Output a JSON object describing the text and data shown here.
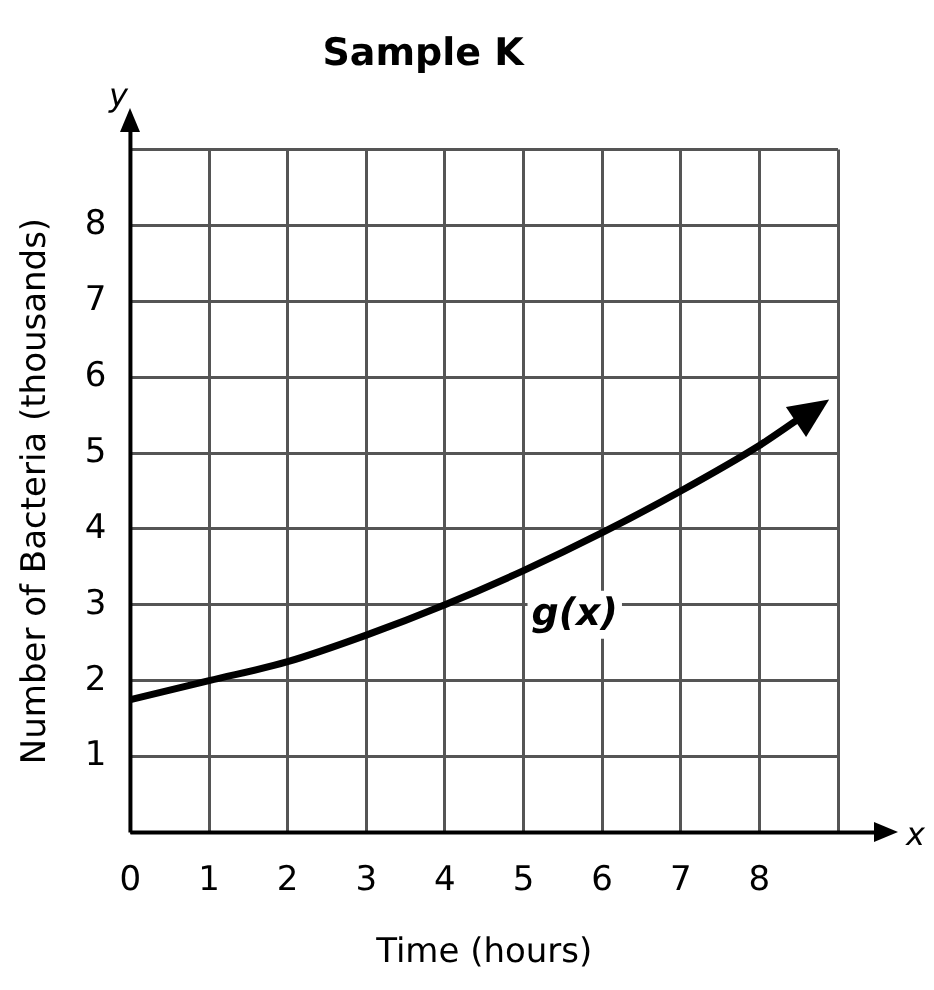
{
  "chart_data": {
    "type": "line",
    "title": "Sample K",
    "xlabel": "Time (hours)",
    "ylabel": "Number of Bacteria (thousands)",
    "x": [
      0,
      1,
      2,
      3,
      4,
      5,
      6,
      7,
      8,
      8.5
    ],
    "series": [
      {
        "name": "g(x)",
        "color": "#000000",
        "values": [
          1.75,
          2.0,
          2.25,
          2.6,
          3.0,
          3.45,
          3.95,
          4.5,
          5.1,
          5.45
        ]
      }
    ],
    "xlim": [
      0,
      9
    ],
    "ylim": [
      0,
      9
    ],
    "xticks": [
      0,
      1,
      2,
      3,
      4,
      5,
      6,
      7,
      8,
      {
        "value": 9,
        "label": null
      }
    ],
    "yticks": [
      {
        "value": 0,
        "label": null
      },
      1,
      2,
      3,
      4,
      5,
      6,
      7,
      8,
      {
        "value": 9,
        "label": null
      }
    ],
    "annotations": [
      "x",
      "y"
    ],
    "grid": true,
    "legend": false,
    "marker": "none",
    "line_style": "solid"
  }
}
